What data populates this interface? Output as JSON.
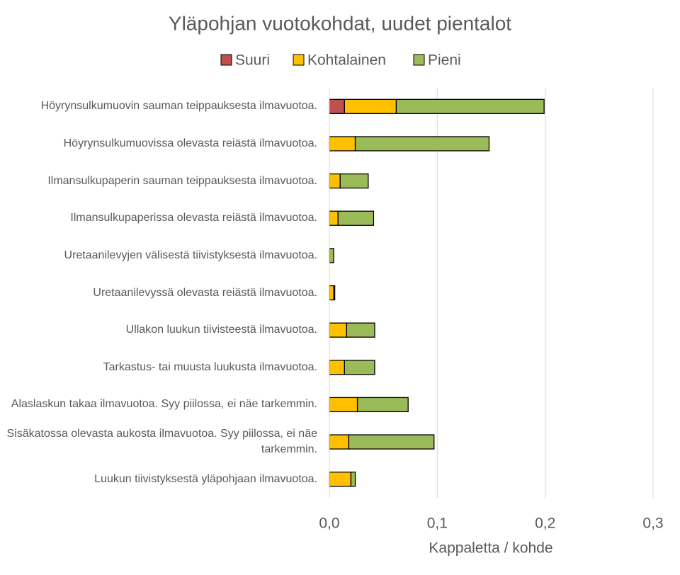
{
  "chart_data": {
    "type": "stacked-bar-horizontal",
    "title": "Yläpohjan vuotokohdat, uudet pientalot",
    "x_label": "Kappaletta / kohde",
    "categories": [
      "Höyrynsulkumuovin sauman teippauksesta ilmavuotoa.",
      "Höyrynsulkumuovissa olevasta reiästä ilmavuotoa.",
      "Ilmansulkupaperin sauman teippauksesta ilmavuotoa.",
      "Ilmansulkupaperissa olevasta reiästä ilmavuotoa.",
      "Uretaanilevyjen välisestä tiivistyksestä ilmavuotoa.",
      "Uretaanilevyssä olevasta reiästä ilmavuotoa.",
      "Ullakon luukun tiivisteestä ilmavuotoa.",
      "Tarkastus- tai muusta luukusta ilmavuotoa.",
      "Alaslaskun takaa ilmavuotoa. Syy piilossa, ei näe tarkemmin.",
      "Sisäkatossa olevasta aukosta ilmavuotoa. Syy piilossa, ei näe tarkemmin.",
      "Luukun tiivistyksestä yläpohjaan ilmavuotoa."
    ],
    "series": [
      {
        "name": "Suuri",
        "color": "#c0504d",
        "values": [
          0.014,
          0,
          0,
          0,
          0,
          0,
          0,
          0,
          0,
          0,
          0
        ]
      },
      {
        "name": "Kohtalainen",
        "color": "#ffc000",
        "values": [
          0.048,
          0.024,
          0.01,
          0.008,
          0,
          0.004,
          0.016,
          0.014,
          0.026,
          0.018,
          0.02
        ]
      },
      {
        "name": "Pieni",
        "color": "#9bbb59",
        "values": [
          0.137,
          0.124,
          0.026,
          0.033,
          0.004,
          0.001,
          0.026,
          0.028,
          0.047,
          0.079,
          0.004
        ]
      }
    ],
    "xlim": [
      0,
      0.3
    ],
    "xticks": [
      {
        "value": 0,
        "label": "0,0"
      },
      {
        "value": 0.1,
        "label": "0,1"
      },
      {
        "value": 0.2,
        "label": "0,2"
      },
      {
        "value": 0.3,
        "label": "0,3"
      }
    ],
    "grid": true,
    "legend": "top"
  }
}
